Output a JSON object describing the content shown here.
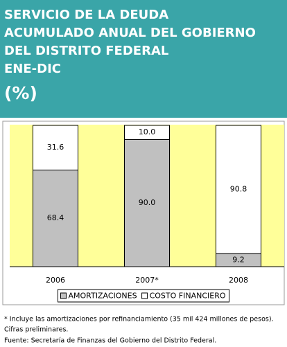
{
  "chart_data": {
    "type": "stacked_bar",
    "title": [
      "SERVICIO DE LA DEUDA",
      "ACUMULADO ANUAL DEL GOBIERNO",
      "DEL DISTRITO FEDERAL",
      "ENE-DIC"
    ],
    "subtitle": "(%)",
    "categories": [
      "2006",
      "2007*",
      "2008"
    ],
    "series": [
      {
        "name": "AMORTIZACIONES",
        "color": "#c0c0c0",
        "values": [
          68.4,
          90.0,
          9.2
        ],
        "value_labels": [
          "68.4",
          "90.0",
          "9.2"
        ]
      },
      {
        "name": "COSTO FINANCIERO",
        "color": "#ffffff",
        "values": [
          31.6,
          10.0,
          90.8
        ],
        "value_labels": [
          "31.6",
          "10.0",
          "90.8"
        ]
      }
    ],
    "ylim": [
      0,
      100
    ],
    "plot_background": "#ffff99",
    "header_color": "#3aa5a8",
    "notes": [
      "* Incluye las amortizaciones por refinanciamiento (35 mil 424 millones de pesos).",
      "Cifras preliminares.",
      "Fuente: Secretaría de Finanzas del Gobierno del Distrito Federal."
    ]
  }
}
